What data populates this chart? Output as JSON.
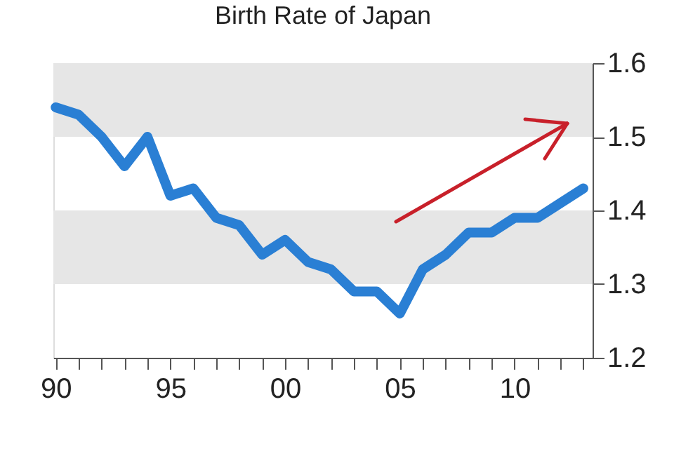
{
  "chart_data": {
    "type": "line",
    "title": "Birth Rate of Japan",
    "x": [
      1990,
      1991,
      1992,
      1993,
      1994,
      1995,
      1996,
      1997,
      1998,
      1999,
      2000,
      2001,
      2002,
      2003,
      2004,
      2005,
      2006,
      2007,
      2008,
      2009,
      2010,
      2011,
      2012,
      2013
    ],
    "series": [
      {
        "color": "#2a7fd4",
        "values": [
          1.54,
          1.53,
          1.5,
          1.46,
          1.5,
          1.42,
          1.43,
          1.39,
          1.38,
          1.34,
          1.36,
          1.33,
          1.32,
          1.29,
          1.29,
          1.26,
          1.32,
          1.34,
          1.37,
          1.37,
          1.39,
          1.39,
          1.41,
          1.43
        ]
      }
    ],
    "xlim": [
      1989.9,
      2013.4
    ],
    "xticks": [
      {
        "value": 1990,
        "label": "90"
      },
      {
        "value": 1991,
        "label": null
      },
      {
        "value": 1992,
        "label": null
      },
      {
        "value": 1993,
        "label": null
      },
      {
        "value": 1994,
        "label": null
      },
      {
        "value": 1995,
        "label": "95"
      },
      {
        "value": 1996,
        "label": null
      },
      {
        "value": 1997,
        "label": null
      },
      {
        "value": 1998,
        "label": null
      },
      {
        "value": 1999,
        "label": null
      },
      {
        "value": 2000,
        "label": "00"
      },
      {
        "value": 2001,
        "label": null
      },
      {
        "value": 2002,
        "label": null
      },
      {
        "value": 2003,
        "label": null
      },
      {
        "value": 2004,
        "label": null
      },
      {
        "value": 2005,
        "label": "05"
      },
      {
        "value": 2006,
        "label": null
      },
      {
        "value": 2007,
        "label": null
      },
      {
        "value": 2008,
        "label": null
      },
      {
        "value": 2009,
        "label": null
      },
      {
        "value": 2010,
        "label": "10"
      },
      {
        "value": 2011,
        "label": null
      },
      {
        "value": 2012,
        "label": null
      },
      {
        "value": 2013,
        "label": null
      }
    ],
    "ylim": [
      1.2,
      1.6
    ],
    "yticks": [
      1.2,
      1.3,
      1.4,
      1.5,
      1.6
    ],
    "bands": [
      {
        "axis": "y",
        "from": 1.3,
        "to": 1.4,
        "color": "#e6e6e6"
      },
      {
        "axis": "y",
        "from": 1.5,
        "to": 1.6,
        "color": "#e6e6e6"
      }
    ],
    "grid": false,
    "line_style": "solid"
  }
}
